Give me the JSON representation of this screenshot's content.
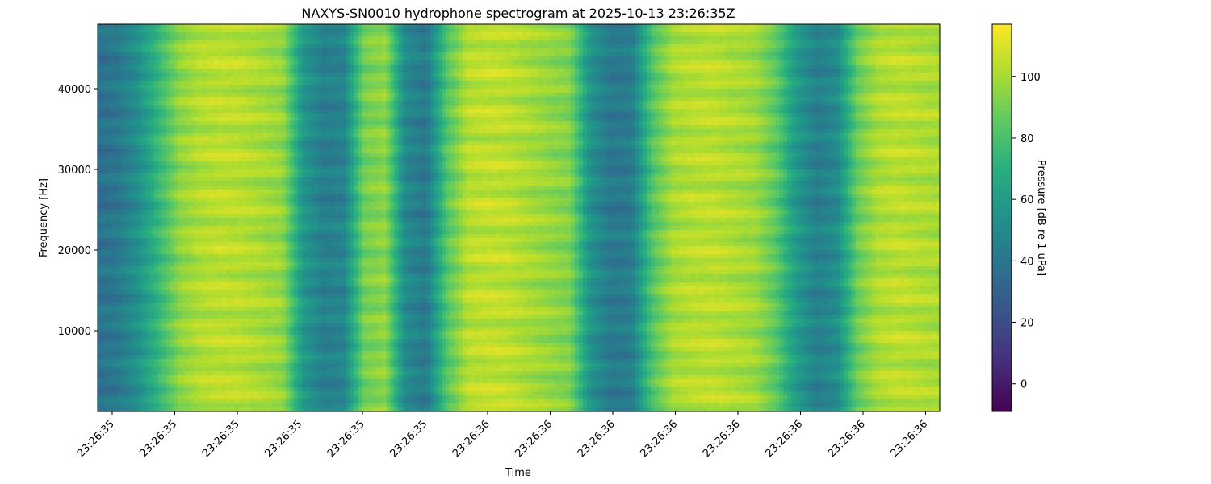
{
  "chart_data": {
    "type": "heatmap",
    "title": "NAXYS-SN0010 hydrophone spectrogram at 2025-10-13 23:26:35Z",
    "xlabel": "Time",
    "ylabel": "Frequency [Hz]",
    "colorbar_label": "Pressure [dB re 1 uPa]",
    "colormap": "viridis",
    "ylim": [
      0,
      48000
    ],
    "y_ticks": [
      10000,
      20000,
      30000,
      40000
    ],
    "x_tick_labels": [
      "23:26:35",
      "23:26:35",
      "23:26:35",
      "23:26:35",
      "23:26:35",
      "23:26:35",
      "23:26:36",
      "23:26:36",
      "23:26:36",
      "23:26:36",
      "23:26:36",
      "23:26:36",
      "23:26:36",
      "23:26:36"
    ],
    "clim": [
      -9,
      117
    ],
    "colorbar_ticks": [
      0,
      20,
      40,
      60,
      80,
      100
    ],
    "time_profile_db": [
      38,
      42,
      55,
      75,
      95,
      102,
      104,
      103,
      100,
      96,
      58,
      45,
      48,
      90,
      95,
      50,
      42,
      82,
      103,
      105,
      104,
      100,
      96,
      92,
      55,
      42,
      44,
      82,
      100,
      103,
      104,
      101,
      98,
      85,
      60,
      45,
      52,
      88,
      101,
      104,
      102,
      100
    ]
  }
}
